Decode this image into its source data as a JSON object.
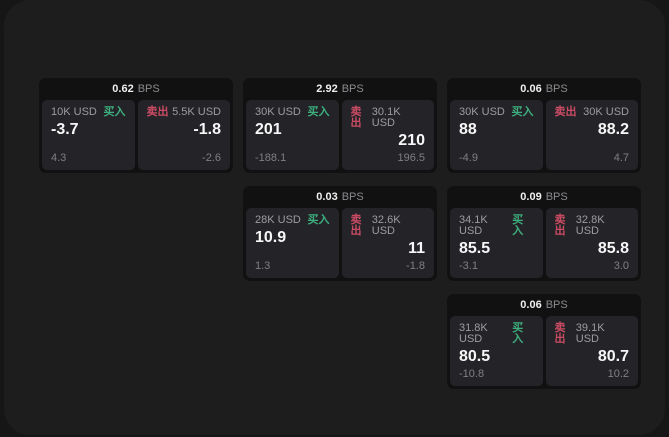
{
  "labels": {
    "bps_unit": "BPS",
    "buy": "买入",
    "sell": "卖出"
  },
  "colors": {
    "outer_bg": "#161616",
    "panel_bg": "#1d1d1e",
    "card_bg": "#111112",
    "cell_bg": "#242428",
    "buy_green": "#3daf7e",
    "sell_red": "#cc4b64",
    "text_primary": "#f7f7f7",
    "text_secondary": "#9c9ca1",
    "text_muted": "#7f7f84"
  },
  "cards": [
    {
      "bps": "0.62",
      "buy": {
        "amount": "10K USD",
        "value": "-3.7",
        "sub": "4.3"
      },
      "sell": {
        "amount": "5.5K USD",
        "value": "-1.8",
        "sub": "-2.6"
      }
    },
    {
      "bps": "2.92",
      "buy": {
        "amount": "30K USD",
        "value": "201",
        "sub": "-188.1"
      },
      "sell": {
        "amount": "30.1K USD",
        "value": "210",
        "sub": "196.5"
      }
    },
    {
      "bps": "0.06",
      "buy": {
        "amount": "30K USD",
        "value": "88",
        "sub": "-4.9"
      },
      "sell": {
        "amount": "30K USD",
        "value": "88.2",
        "sub": "4.7"
      }
    },
    {
      "bps": "0.03",
      "buy": {
        "amount": "28K USD",
        "value": "10.9",
        "sub": "1.3"
      },
      "sell": {
        "amount": "32.6K USD",
        "value": "11",
        "sub": "-1.8"
      }
    },
    {
      "bps": "0.09",
      "buy": {
        "amount": "34.1K USD",
        "value": "85.5",
        "sub": "-3.1"
      },
      "sell": {
        "amount": "32.8K USD",
        "value": "85.8",
        "sub": "3.0"
      }
    },
    {
      "bps": "0.06",
      "buy": {
        "amount": "31.8K USD",
        "value": "80.5",
        "sub": "-10.8"
      },
      "sell": {
        "amount": "39.1K USD",
        "value": "80.7",
        "sub": "10.2"
      }
    }
  ]
}
